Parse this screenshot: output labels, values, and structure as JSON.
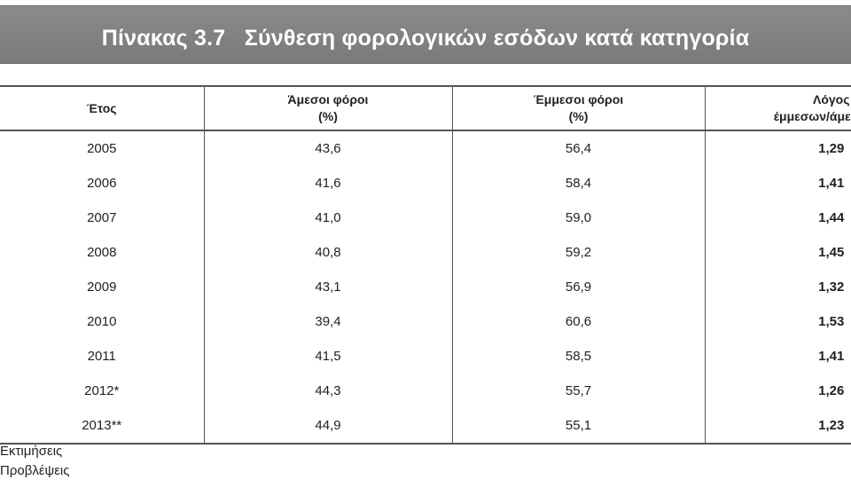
{
  "title": "Πίνακας 3.7   Σύνθεση φορολογικών εσόδων κατά κατηγορία",
  "headers": {
    "year": "Έτος",
    "direct_line1": "Άμεσοι φόροι",
    "direct_line2": "(%)",
    "indirect_line1": "Έμμεσοι φόροι",
    "indirect_line2": "(%)",
    "ratio_line1": "Λόγος",
    "ratio_line2": "έμμεσων/άμεσων φ"
  },
  "rows": [
    {
      "year": "2005",
      "direct": "43,6",
      "indirect": "56,4",
      "ratio": "1,29"
    },
    {
      "year": "2006",
      "direct": "41,6",
      "indirect": "58,4",
      "ratio": "1,41"
    },
    {
      "year": "2007",
      "direct": "41,0",
      "indirect": "59,0",
      "ratio": "1,44"
    },
    {
      "year": "2008",
      "direct": "40,8",
      "indirect": "59,2",
      "ratio": "1,45"
    },
    {
      "year": "2009",
      "direct": "43,1",
      "indirect": "56,9",
      "ratio": "1,32"
    },
    {
      "year": "2010",
      "direct": "39,4",
      "indirect": "60,6",
      "ratio": "1,53"
    },
    {
      "year": "2011",
      "direct": "41,5",
      "indirect": "58,5",
      "ratio": "1,41"
    },
    {
      "year": "2012*",
      "direct": "44,3",
      "indirect": "55,7",
      "ratio": "1,26"
    },
    {
      "year": "2013**",
      "direct": "44,9",
      "indirect": "55,1",
      "ratio": "1,23"
    }
  ],
  "notes": [
    "Εκτιμήσεις",
    "Προβλέψεις"
  ],
  "colors": {
    "title_bar": "#808080",
    "title_text": "#ffffff",
    "rule": "#555555"
  }
}
